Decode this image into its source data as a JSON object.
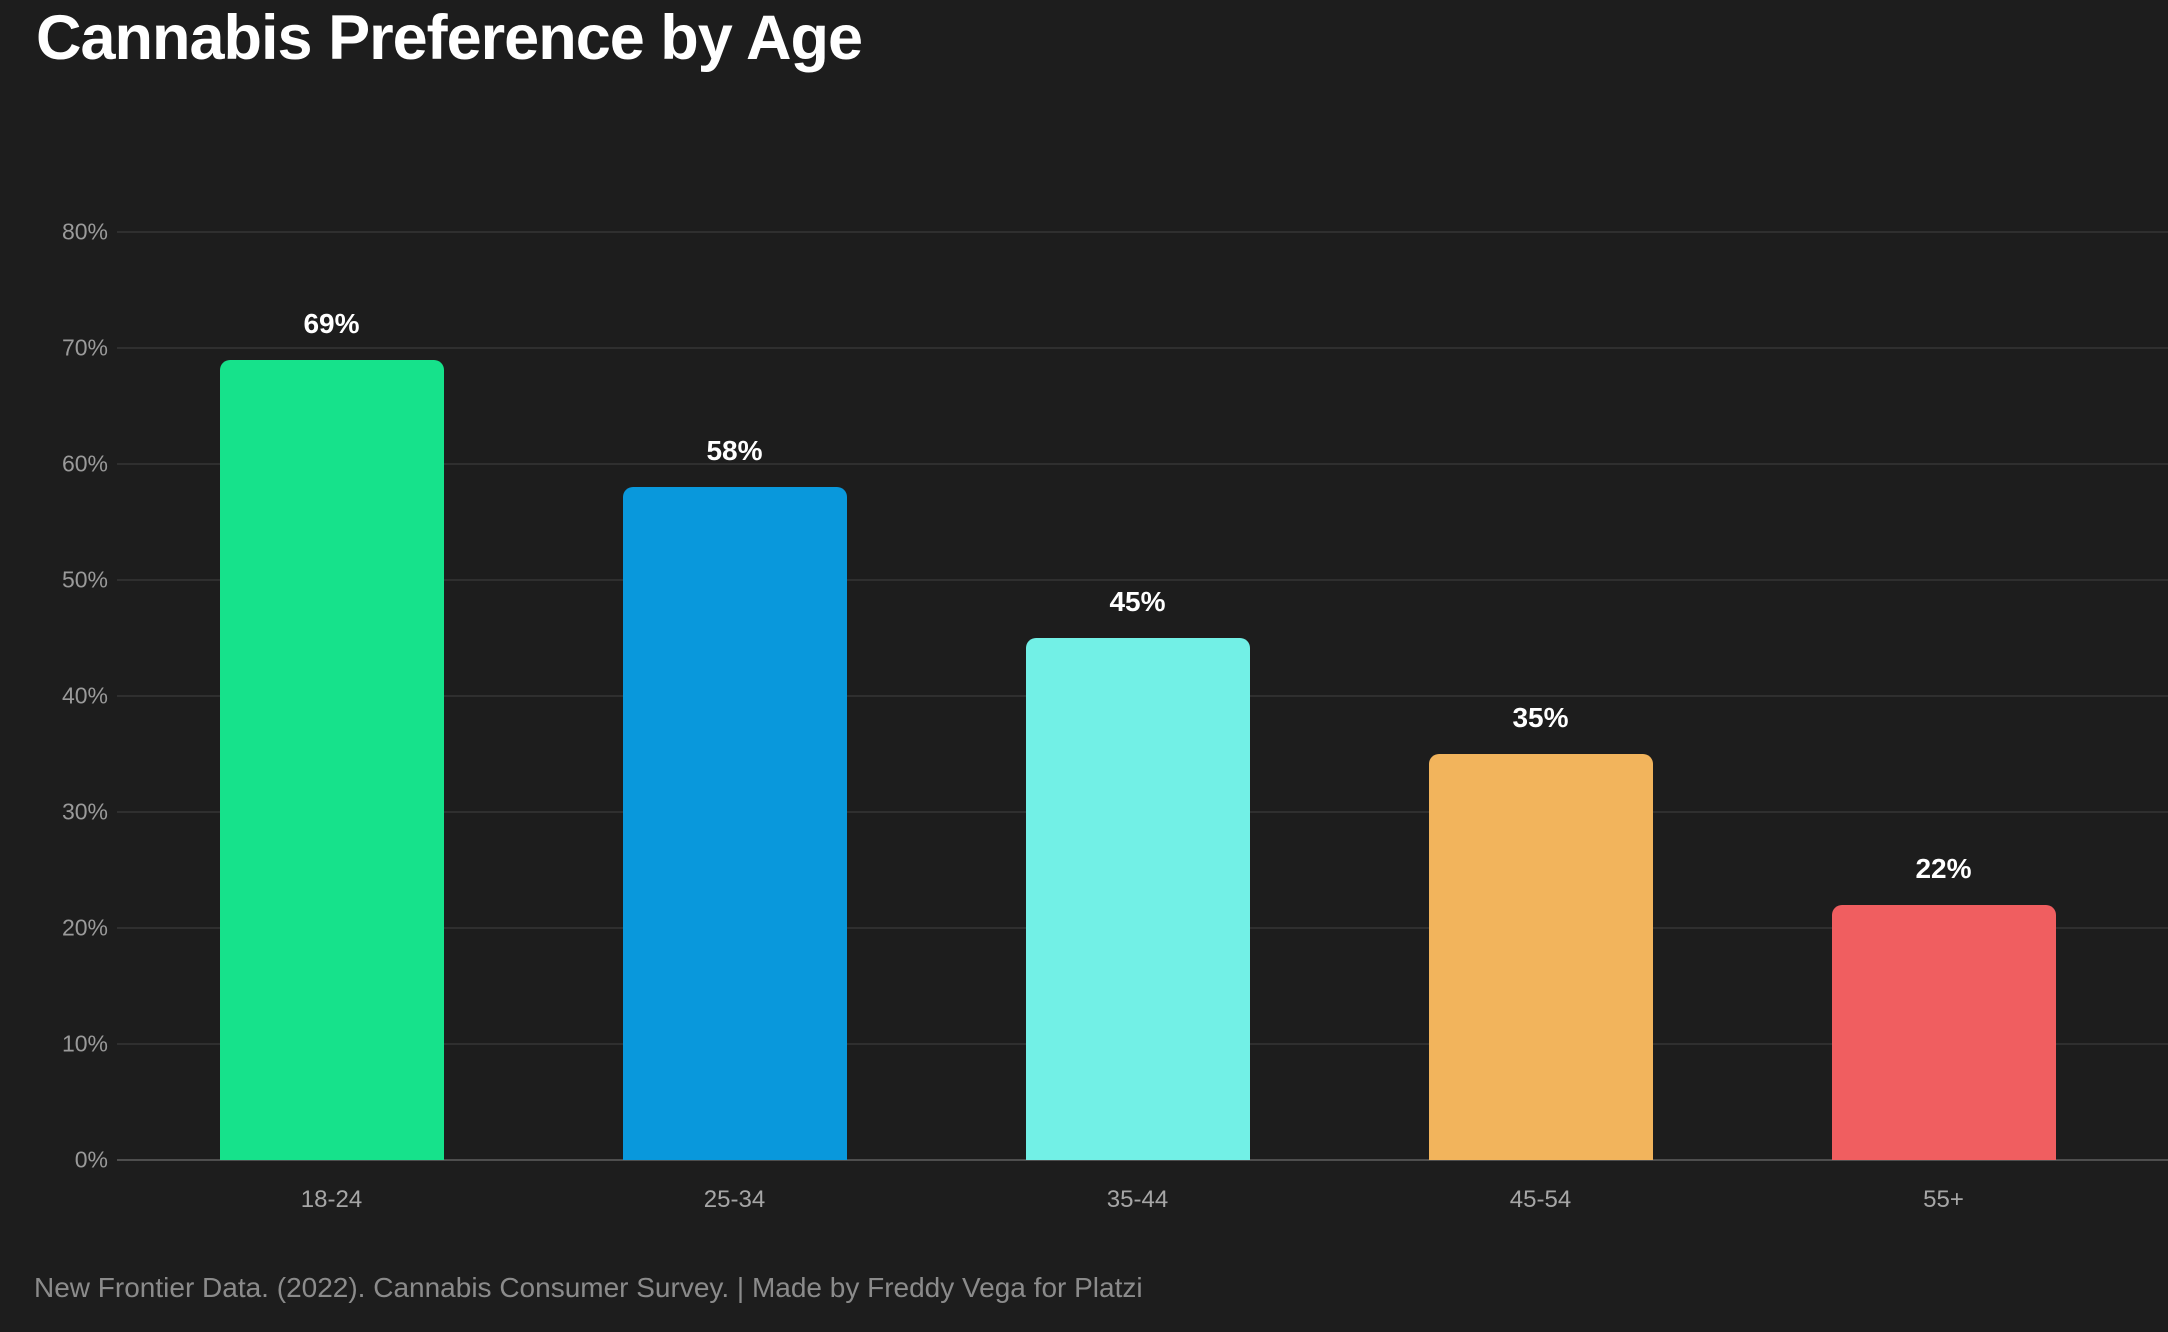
{
  "page": {
    "title": "Cannabis Preference by Age",
    "footer": "New Frontier Data. (2022). Cannabis Consumer Survey. | Made by Freddy Vega for Platzi"
  },
  "colors": {
    "background": "#1d1d1d",
    "gridline": "#2f2f2f",
    "axis_baseline": "#4e4e4e",
    "title_text": "#ffffff",
    "ytick_text": "#9a9a9a",
    "xtick_text": "#a6a6a6",
    "footer_text": "#8b8b8b",
    "value_label_text": "#ffffff"
  },
  "chart_data": {
    "type": "bar",
    "title": "Cannabis Preference by Age",
    "categories": [
      "18-24",
      "25-34",
      "35-44",
      "45-54",
      "55+"
    ],
    "values": [
      69,
      58,
      45,
      35,
      22
    ],
    "value_labels": [
      "69%",
      "58%",
      "45%",
      "35%",
      "22%"
    ],
    "bar_colors": [
      "#16e28b",
      "#0998dc",
      "#72f0e6",
      "#f2b45c",
      "#f05e60"
    ],
    "xlabel": "",
    "ylabel": "",
    "ylim": [
      0,
      80
    ],
    "ytick_step": 10,
    "ytick_labels": [
      "0%",
      "10%",
      "20%",
      "30%",
      "40%",
      "50%",
      "60%",
      "70%",
      "80%"
    ],
    "grid": true,
    "legend": false,
    "source_note": "New Frontier Data. (2022). Cannabis Consumer Survey. | Made by Freddy Vega for Platzi"
  }
}
